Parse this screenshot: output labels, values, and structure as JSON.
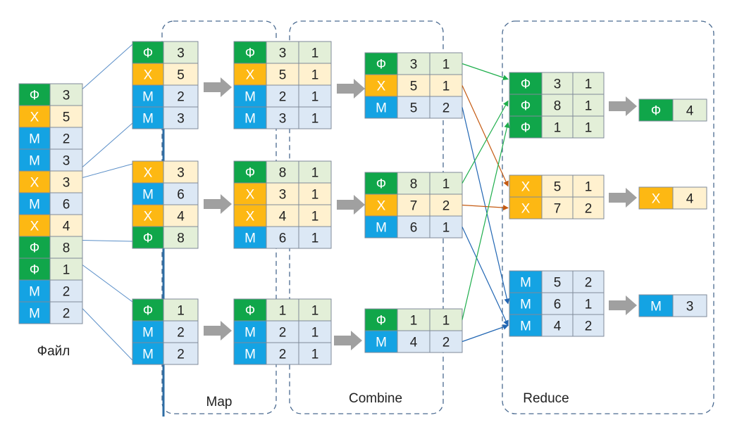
{
  "colors": {
    "F": {
      "key": "#10A64A",
      "keyText": "#ffffff",
      "val": "#E3EFD8"
    },
    "X": {
      "key": "#FDB813",
      "keyText": "#ffffff",
      "val": "#FFF1CF"
    },
    "M": {
      "key": "#14A3E3",
      "keyText": "#ffffff",
      "val": "#DCE8F5"
    },
    "cellBorder": "#7F8A99",
    "valText": "#222222",
    "arrow": "#A0A0A0",
    "dash": "#4A6A90",
    "fileLine": "#5B8FC8",
    "routeF": "#1EAE4C",
    "routeX": "#C55A11",
    "routeM": "#2166B3"
  },
  "labels": {
    "file": "Файл",
    "map": "Map",
    "combine": "Combine",
    "reduce": "Reduce"
  },
  "keys": {
    "F": "Ф",
    "X": "Х",
    "M": "М"
  },
  "file": [
    [
      "F",
      "3"
    ],
    [
      "X",
      "5"
    ],
    [
      "M",
      "2"
    ],
    [
      "M",
      "3"
    ],
    [
      "X",
      "3"
    ],
    [
      "M",
      "6"
    ],
    [
      "X",
      "4"
    ],
    [
      "F",
      "8"
    ],
    [
      "F",
      "1"
    ],
    [
      "M",
      "2"
    ],
    [
      "M",
      "2"
    ]
  ],
  "splits": [
    [
      [
        "F",
        "3"
      ],
      [
        "X",
        "5"
      ],
      [
        "M",
        "2"
      ],
      [
        "M",
        "3"
      ]
    ],
    [
      [
        "X",
        "3"
      ],
      [
        "M",
        "6"
      ],
      [
        "X",
        "4"
      ],
      [
        "F",
        "8"
      ]
    ],
    [
      [
        "F",
        "1"
      ],
      [
        "M",
        "2"
      ],
      [
        "M",
        "2"
      ]
    ]
  ],
  "mapped": [
    [
      [
        "F",
        "3",
        "1"
      ],
      [
        "X",
        "5",
        "1"
      ],
      [
        "M",
        "2",
        "1"
      ],
      [
        "M",
        "3",
        "1"
      ]
    ],
    [
      [
        "F",
        "8",
        "1"
      ],
      [
        "X",
        "3",
        "1"
      ],
      [
        "X",
        "4",
        "1"
      ],
      [
        "M",
        "6",
        "1"
      ]
    ],
    [
      [
        "F",
        "1",
        "1"
      ],
      [
        "M",
        "2",
        "1"
      ],
      [
        "M",
        "2",
        "1"
      ]
    ]
  ],
  "combined": [
    [
      [
        "F",
        "3",
        "1"
      ],
      [
        "X",
        "5",
        "1"
      ],
      [
        "M",
        "5",
        "2"
      ]
    ],
    [
      [
        "F",
        "8",
        "1"
      ],
      [
        "X",
        "7",
        "2"
      ],
      [
        "M",
        "6",
        "1"
      ]
    ],
    [
      [
        "F",
        "1",
        "1"
      ],
      [
        "M",
        "4",
        "2"
      ]
    ]
  ],
  "grouped": [
    [
      [
        "F",
        "3",
        "1"
      ],
      [
        "F",
        "8",
        "1"
      ],
      [
        "F",
        "1",
        "1"
      ]
    ],
    [
      [
        "X",
        "5",
        "1"
      ],
      [
        "X",
        "7",
        "2"
      ]
    ],
    [
      [
        "M",
        "5",
        "2"
      ],
      [
        "M",
        "6",
        "1"
      ],
      [
        "M",
        "4",
        "2"
      ]
    ]
  ],
  "reduced": [
    [
      "F",
      "4"
    ],
    [
      "X",
      "4"
    ],
    [
      "M",
      "3"
    ]
  ]
}
